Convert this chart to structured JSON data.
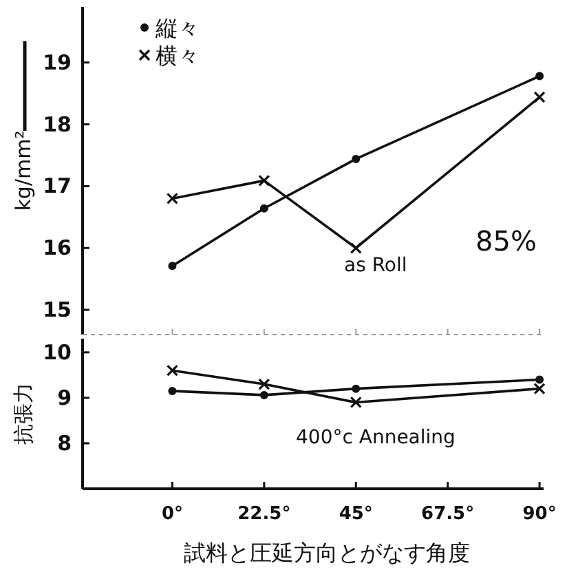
{
  "chart_data": [
    {
      "type": "line",
      "ylabel": "kg/mm²",
      "x": [
        0,
        22.5,
        45,
        90
      ],
      "xlim": [
        -22,
        91
      ],
      "xticks": [
        {
          "value": 0,
          "label": null
        },
        {
          "value": 22.5,
          "label": null
        },
        {
          "value": 45,
          "label": null
        },
        {
          "value": 67.5,
          "label": null
        },
        {
          "value": 90,
          "label": null
        }
      ],
      "ylim": [
        14.6,
        19.9
      ],
      "yticks": [
        15,
        16,
        17,
        18,
        19
      ],
      "tick_labels": "y",
      "legend": "top left",
      "grid": false,
      "series": [
        {
          "name": "縦々",
          "color": "#111111",
          "marker": "circle",
          "values": [
            15.71,
            16.64,
            17.44,
            18.78
          ]
        },
        {
          "name": "横々",
          "color": "#111111",
          "marker": "cross",
          "values": [
            16.8,
            17.09,
            16.0,
            18.44
          ]
        }
      ],
      "annotations": [
        "as Roll",
        "85%"
      ]
    },
    {
      "type": "line",
      "ylabel": "抗張力",
      "xlabel": "試料と圧延方向とがなす角度",
      "x": [
        0,
        22.5,
        45,
        90
      ],
      "xlim": [
        -22,
        91
      ],
      "xticks": [
        {
          "value": 0,
          "label": "0°"
        },
        {
          "value": 22.5,
          "label": "22.5°"
        },
        {
          "value": 45,
          "label": "45°"
        },
        {
          "value": 67.5,
          "label": "67.5°"
        },
        {
          "value": 90,
          "label": "90°"
        }
      ],
      "ylim": [
        7,
        10.3
      ],
      "yticks": [
        8,
        9,
        10
      ],
      "grid": false,
      "series": [
        {
          "color": "#111111",
          "marker": "circle",
          "values": [
            9.15,
            9.06,
            9.2,
            9.4
          ]
        },
        {
          "color": "#111111",
          "marker": "cross",
          "values": [
            9.6,
            9.3,
            8.9,
            9.2
          ]
        }
      ],
      "annotations": [
        "400°c Annealing"
      ]
    }
  ]
}
